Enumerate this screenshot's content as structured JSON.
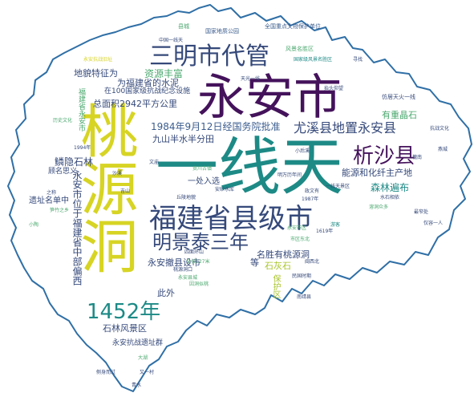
{
  "palette": {
    "purple": "#44125b",
    "teal": "#1d8a86",
    "navy": "#35497a",
    "green": "#4aa86e",
    "olive": "#a9c42b",
    "yellow": "#d7d424",
    "blue": "#3b5c8e",
    "outline": "#2f6fa6"
  },
  "word_cloud": {
    "big": {
      "yi_xian_tian": "一线天",
      "yong_an_shi": "永安市",
      "tao_yuan_dong": "桃源洞",
      "fujian_xianji": "福建省县级市",
      "sanming_daiguan": "三明市代管",
      "year_1452": "1452年",
      "xisha_xian": "析沙县",
      "mingjingtai": "明景泰三年",
      "youxi": "尤溪县地置永安县"
    },
    "medium": {
      "date_approval": "1984年9月12日经国务院批准",
      "jiushan": "九山半水半分田",
      "linlin": "鳞隐石林",
      "resources": "资源丰富",
      "landscape": "地貌特征为",
      "cement": "为福建省的水泥",
      "forest": "森林遍布",
      "energy": "能源和化纤主产地",
      "mineral": "有重晶石",
      "area": "总面积2942平方公里",
      "memorial": "在100国家级抗战纪念设施",
      "yici_xuan": "一处入选",
      "mingsheng": "名胜有桃源洞",
      "setup": "永安撤县设市",
      "limestone": "石灰石",
      "scenic": "石林风景区",
      "anti_japan": "永安抗战遗址群",
      "yong_an_city_seat": "永安市位于福建省中部偏西",
      "ciwai": "此外",
      "site_list": "遗址名单中",
      "yongan_red": "福建省永安市",
      "he": "等",
      "baozhu": "保护区",
      "guming": "顾名思义"
    },
    "small": {
      "s1": "县城",
      "s2": "国家地质公园",
      "s3": "全国重点文物保护单位",
      "s4": "风景名胜区",
      "s5": "仿居天火一线",
      "s6": "国家级风景名胜区",
      "s7": "寻找",
      "s8": "中国一线天",
      "s9": "历史文化",
      "s10": "抗战文化",
      "s11": "1987年",
      "s12": "1619年",
      "s13": "1994年",
      "s14": "之称",
      "s15": "游客",
      "s16": "小后溪",
      "s17": "政文有",
      "s18": "明万历年间",
      "s19": "水石相依",
      "s20": "溶洞众多",
      "s21": "丘陵地貌",
      "s22": "贡川古镇",
      "s23": "安砂水库",
      "s24": "文庙",
      "s25": "槐南",
      "s26": "燕城",
      "s27": "吉山",
      "s28": "沙溪",
      "s29": "笋竹之乡",
      "s30": "桃源洞口",
      "s31": "永安县城",
      "s32": "四面环山",
      "s33": "因洞似桃",
      "s34": "永安市区",
      "s35": "市区东北",
      "s36": "民国时期",
      "s37": "南靖县",
      "s38": "闽西北",
      "s39": "又一村",
      "s40": "青水",
      "s41": "大湖",
      "s42": "小陶",
      "s43": "永安抗战旧址",
      "s44": "一线天景区",
      "s45": "全长127米",
      "s46": "最窄处",
      "s47": "仅容一人",
      "s48": "侧身而过",
      "s49": "抬头仰望",
      "s50": "天光一线"
    }
  }
}
